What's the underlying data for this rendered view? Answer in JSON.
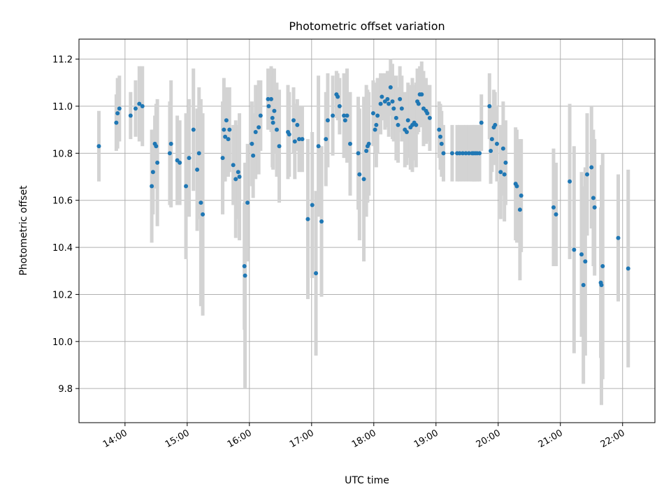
{
  "chart_data": {
    "type": "scatter",
    "title": "Photometric offset variation",
    "xlabel": "UTC time",
    "ylabel": "Photometric offset",
    "x_unit": "UTC time (hours)",
    "xlim": [
      13.26,
      22.52
    ],
    "ylim": [
      9.655,
      11.285
    ],
    "x_ticks": [
      {
        "value": 14,
        "label": "14:00"
      },
      {
        "value": 15,
        "label": "15:00"
      },
      {
        "value": 16,
        "label": "16:00"
      },
      {
        "value": 17,
        "label": "17:00"
      },
      {
        "value": 18,
        "label": "18:00"
      },
      {
        "value": 19,
        "label": "19:00"
      },
      {
        "value": 20,
        "label": "20:00"
      },
      {
        "value": 21,
        "label": "21:00"
      },
      {
        "value": 22,
        "label": "22:00"
      }
    ],
    "y_ticks": [
      {
        "value": 9.8,
        "label": "9.8"
      },
      {
        "value": 10.0,
        "label": "10.0"
      },
      {
        "value": 10.2,
        "label": "10.2"
      },
      {
        "value": 10.4,
        "label": "10.4"
      },
      {
        "value": 10.6,
        "label": "10.6"
      },
      {
        "value": 10.8,
        "label": "10.8"
      },
      {
        "value": 11.0,
        "label": "11.0"
      },
      {
        "value": 11.2,
        "label": "11.2"
      }
    ],
    "grid": true,
    "colors": {
      "point": "#1f77b4",
      "errorbar": "#d3d3d3",
      "grid": "#b0b0b0"
    },
    "series": [
      {
        "columns": [
          "x",
          "y",
          "err"
        ],
        "points": [
          [
            13.58,
            10.83,
            0.15
          ],
          [
            13.86,
            10.93,
            0.12
          ],
          [
            13.88,
            10.97,
            0.15
          ],
          [
            13.91,
            10.99,
            0.14
          ],
          [
            14.09,
            10.96,
            0.1
          ],
          [
            14.17,
            10.99,
            0.12
          ],
          [
            14.23,
            11.01,
            0.16
          ],
          [
            14.28,
            11.0,
            0.17
          ],
          [
            14.43,
            10.66,
            0.24
          ],
          [
            14.45,
            10.72,
            0.18
          ],
          [
            14.48,
            10.84,
            0.12
          ],
          [
            14.5,
            10.83,
            0.18
          ],
          [
            14.52,
            10.76,
            0.27
          ],
          [
            14.72,
            10.8,
            0.22
          ],
          [
            14.74,
            10.84,
            0.27
          ],
          [
            14.84,
            10.77,
            0.19
          ],
          [
            14.88,
            10.76,
            0.18
          ],
          [
            14.98,
            10.66,
            0.31
          ],
          [
            15.03,
            10.78,
            0.25
          ],
          [
            15.1,
            10.9,
            0.26
          ],
          [
            15.16,
            10.73,
            0.26
          ],
          [
            15.19,
            10.8,
            0.28
          ],
          [
            15.22,
            10.59,
            0.44
          ],
          [
            15.25,
            10.54,
            0.43
          ],
          [
            15.57,
            10.78,
            0.24
          ],
          [
            15.59,
            10.9,
            0.22
          ],
          [
            15.61,
            10.87,
            0.19
          ],
          [
            15.63,
            10.94,
            0.14
          ],
          [
            15.66,
            10.86,
            0.16
          ],
          [
            15.68,
            10.9,
            0.18
          ],
          [
            15.74,
            10.75,
            0.17
          ],
          [
            15.78,
            10.69,
            0.25
          ],
          [
            15.82,
            10.72,
            0.2
          ],
          [
            15.84,
            10.7,
            0.27
          ],
          [
            15.92,
            10.32,
            0.27
          ],
          [
            15.93,
            10.28,
            0.48
          ],
          [
            15.97,
            10.59,
            0.25
          ],
          [
            16.04,
            10.84,
            0.18
          ],
          [
            16.06,
            10.79,
            0.18
          ],
          [
            16.1,
            10.89,
            0.2
          ],
          [
            16.15,
            10.91,
            0.2
          ],
          [
            16.18,
            10.96,
            0.15
          ],
          [
            16.3,
            11.03,
            0.13
          ],
          [
            16.31,
            11.0,
            0.1
          ],
          [
            16.35,
            11.03,
            0.14
          ],
          [
            16.37,
            10.95,
            0.21
          ],
          [
            16.38,
            10.93,
            0.2
          ],
          [
            16.4,
            10.98,
            0.18
          ],
          [
            16.44,
            10.9,
            0.2
          ],
          [
            16.48,
            10.83,
            0.24
          ],
          [
            16.62,
            10.89,
            0.2
          ],
          [
            16.64,
            10.88,
            0.18
          ],
          [
            16.71,
            10.94,
            0.14
          ],
          [
            16.73,
            10.85,
            0.16
          ],
          [
            16.77,
            10.92,
            0.11
          ],
          [
            16.8,
            10.86,
            0.14
          ],
          [
            16.85,
            10.86,
            0.14
          ],
          [
            16.94,
            10.52,
            0.34
          ],
          [
            17.01,
            10.58,
            0.31
          ],
          [
            17.07,
            10.29,
            0.35
          ],
          [
            17.11,
            10.83,
            0.3
          ],
          [
            17.16,
            10.51,
            0.32
          ],
          [
            17.23,
            10.86,
            0.2
          ],
          [
            17.26,
            10.94,
            0.2
          ],
          [
            17.34,
            10.96,
            0.17
          ],
          [
            17.4,
            11.05,
            0.1
          ],
          [
            17.42,
            11.04,
            0.1
          ],
          [
            17.45,
            11.0,
            0.12
          ],
          [
            17.52,
            10.96,
            0.18
          ],
          [
            17.54,
            10.94,
            0.16
          ],
          [
            17.57,
            10.96,
            0.2
          ],
          [
            17.62,
            10.84,
            0.22
          ],
          [
            17.75,
            10.8,
            0.24
          ],
          [
            17.77,
            10.71,
            0.28
          ],
          [
            17.84,
            10.69,
            0.35
          ],
          [
            17.88,
            10.81,
            0.28
          ],
          [
            17.9,
            10.83,
            0.24
          ],
          [
            17.92,
            10.84,
            0.22
          ],
          [
            17.99,
            10.97,
            0.14
          ],
          [
            18.02,
            10.9,
            0.1
          ],
          [
            18.04,
            10.92,
            0.18
          ],
          [
            18.06,
            10.96,
            0.16
          ],
          [
            18.11,
            11.01,
            0.13
          ],
          [
            18.13,
            11.04,
            0.1
          ],
          [
            18.18,
            11.02,
            0.12
          ],
          [
            18.22,
            11.03,
            0.12
          ],
          [
            18.24,
            11.01,
            0.14
          ],
          [
            18.27,
            11.08,
            0.12
          ],
          [
            18.3,
            11.02,
            0.16
          ],
          [
            18.32,
            10.99,
            0.14
          ],
          [
            18.36,
            10.95,
            0.18
          ],
          [
            18.39,
            10.92,
            0.16
          ],
          [
            18.42,
            11.03,
            0.14
          ],
          [
            18.45,
            10.99,
            0.14
          ],
          [
            18.5,
            10.9,
            0.16
          ],
          [
            18.53,
            10.89,
            0.14
          ],
          [
            18.55,
            10.94,
            0.16
          ],
          [
            18.59,
            10.91,
            0.18
          ],
          [
            18.62,
            10.92,
            0.2
          ],
          [
            18.65,
            10.93,
            0.16
          ],
          [
            18.68,
            10.92,
            0.18
          ],
          [
            18.7,
            11.02,
            0.14
          ],
          [
            18.72,
            11.01,
            0.12
          ],
          [
            18.74,
            11.05,
            0.12
          ],
          [
            18.77,
            11.05,
            0.14
          ],
          [
            18.8,
            10.99,
            0.16
          ],
          [
            18.84,
            10.98,
            0.14
          ],
          [
            18.86,
            10.97,
            0.12
          ],
          [
            18.9,
            10.95,
            0.14
          ],
          [
            19.05,
            10.9,
            0.12
          ],
          [
            19.07,
            10.87,
            0.14
          ],
          [
            19.09,
            10.84,
            0.14
          ],
          [
            19.12,
            10.8,
            0.12
          ],
          [
            19.26,
            10.8,
            0.12
          ],
          [
            19.34,
            10.8,
            0.12
          ],
          [
            19.38,
            10.8,
            0.12
          ],
          [
            19.43,
            10.8,
            0.12
          ],
          [
            19.48,
            10.8,
            0.12
          ],
          [
            19.53,
            10.8,
            0.12
          ],
          [
            19.58,
            10.8,
            0.12
          ],
          [
            19.6,
            10.8,
            0.12
          ],
          [
            19.63,
            10.8,
            0.12
          ],
          [
            19.66,
            10.8,
            0.12
          ],
          [
            19.7,
            10.8,
            0.12
          ],
          [
            19.73,
            10.93,
            0.12
          ],
          [
            19.86,
            11.0,
            0.14
          ],
          [
            19.88,
            10.81,
            0.14
          ],
          [
            19.9,
            10.86,
            0.14
          ],
          [
            19.93,
            10.91,
            0.16
          ],
          [
            19.95,
            10.92,
            0.14
          ],
          [
            19.98,
            10.84,
            0.16
          ],
          [
            20.04,
            10.72,
            0.2
          ],
          [
            20.08,
            10.82,
            0.2
          ],
          [
            20.1,
            10.71,
            0.2
          ],
          [
            20.12,
            10.76,
            0.18
          ],
          [
            20.28,
            10.67,
            0.24
          ],
          [
            20.3,
            10.66,
            0.24
          ],
          [
            20.35,
            10.56,
            0.3
          ],
          [
            20.37,
            10.62,
            0.24
          ],
          [
            20.89,
            10.57,
            0.25
          ],
          [
            20.93,
            10.54,
            0.22
          ],
          [
            21.15,
            10.68,
            0.33
          ],
          [
            21.22,
            10.39,
            0.44
          ],
          [
            21.34,
            10.37,
            0.35
          ],
          [
            21.37,
            10.24,
            0.42
          ],
          [
            21.4,
            10.34,
            0.4
          ],
          [
            21.43,
            10.71,
            0.26
          ],
          [
            21.5,
            10.74,
            0.26
          ],
          [
            21.53,
            10.61,
            0.29
          ],
          [
            21.55,
            10.57,
            0.29
          ],
          [
            21.65,
            10.25,
            0.32
          ],
          [
            21.66,
            10.24,
            0.51
          ],
          [
            21.68,
            10.32,
            0.48
          ],
          [
            21.93,
            10.44,
            0.27
          ],
          [
            22.09,
            10.31,
            0.42
          ]
        ]
      }
    ]
  }
}
